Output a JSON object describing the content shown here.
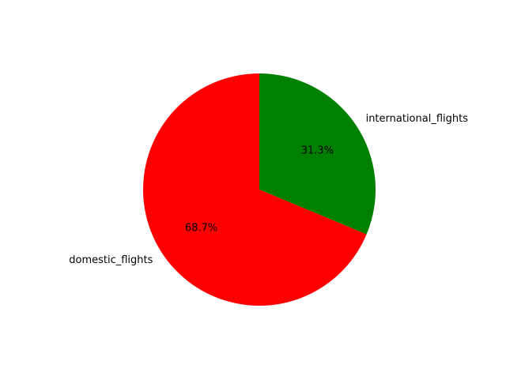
{
  "chart_data": {
    "type": "pie",
    "labels": [
      "international_flights",
      "domestic_flights"
    ],
    "values": [
      31.3,
      68.7
    ],
    "percent_labels": [
      "31.3%",
      "68.7%"
    ],
    "colors": [
      "#008000",
      "#ff0000"
    ],
    "start_angle_deg": 90,
    "direction": "clockwise",
    "title": ""
  }
}
